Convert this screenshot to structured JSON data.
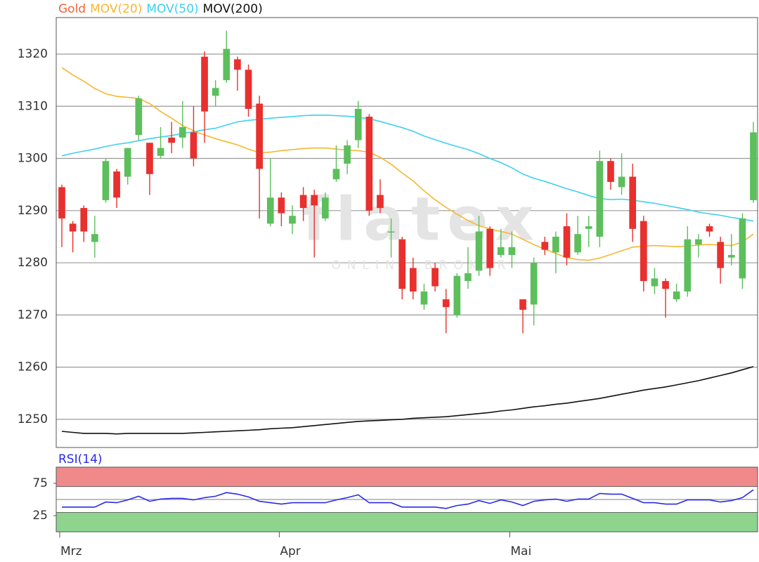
{
  "chart_data": [
    {
      "type": "candlestick",
      "name": "Gold",
      "color": "#f2643a",
      "up_color": "#5cbf5c",
      "down_color": "#e8302e",
      "watermark": "flatex",
      "watermark_subtitle": "ONLINE BROKER",
      "categories": [
        "Mrz",
        null,
        null,
        null,
        null,
        null,
        null,
        null,
        null,
        null,
        null,
        null,
        null,
        null,
        null,
        null,
        null,
        null,
        null,
        null,
        "Apr",
        null,
        null,
        null,
        null,
        null,
        null,
        null,
        null,
        null,
        null,
        null,
        null,
        null,
        null,
        null,
        null,
        null,
        null,
        null,
        null,
        "Mai",
        null,
        null,
        null,
        null,
        null,
        null,
        null,
        null,
        null,
        null,
        null,
        null,
        null,
        null,
        null,
        null,
        null,
        null,
        null,
        null,
        null,
        null
      ],
      "open": [
        1294.5,
        1287.5,
        1290.5,
        1284,
        1292,
        1297.5,
        1296.5,
        1304.5,
        1303,
        1300.5,
        1304,
        1304,
        1305,
        1319.5,
        1312,
        1315,
        1319,
        1317,
        1310.5,
        1287.5,
        1292.5,
        1287.5,
        1293,
        1293,
        1288.5,
        1296,
        1299,
        1303.5,
        1308,
        1293,
        1286,
        1284.5,
        1279,
        1272,
        1279,
        1273,
        1270,
        1276.5,
        1278.5,
        1286.5,
        1281.5,
        1281.5,
        1273,
        1272,
        1284,
        1282,
        1287,
        1282,
        1286.5,
        1285,
        1299.5,
        1294.5,
        1296.5,
        1288,
        1275.5,
        1276.5,
        1273,
        1274.5,
        1283.5,
        1287,
        1284,
        1281,
        1277,
        1292
      ],
      "high": [
        1295,
        1288,
        1291,
        1289,
        1300,
        1298,
        1302,
        1312,
        1303,
        1306,
        1307,
        1311,
        1310,
        1320.5,
        1315,
        1324.5,
        1319.5,
        1318,
        1312,
        1300,
        1293.5,
        1291,
        1294.5,
        1294,
        1293.5,
        1302.5,
        1303.5,
        1311,
        1308.5,
        1296,
        1288.5,
        1285,
        1281,
        1276,
        1280,
        1275,
        1278,
        1283,
        1289,
        1287,
        1286.5,
        1286,
        1273,
        1281,
        1285,
        1286,
        1289.5,
        1289,
        1289,
        1301.5,
        1300,
        1301,
        1299,
        1289,
        1279,
        1277,
        1276,
        1287,
        1285.5,
        1287.5,
        1285,
        1285.5,
        1289.5,
        1307
      ],
      "low": [
        1283,
        1282,
        1284,
        1281,
        1291.5,
        1290.5,
        1295,
        1303.5,
        1293,
        1300,
        1301,
        1302,
        1298.5,
        1303,
        1310,
        1314.5,
        1313,
        1308,
        1288.5,
        1287,
        1287,
        1285.5,
        1288,
        1281,
        1288,
        1295.5,
        1297,
        1302,
        1289,
        1289.5,
        1281,
        1273,
        1273,
        1271,
        1274.5,
        1266.5,
        1269.5,
        1275,
        1277.5,
        1277.5,
        1281,
        1279,
        1266.5,
        1268,
        1281.5,
        1278,
        1279.5,
        1281.5,
        1283,
        1283,
        1294,
        1293,
        1284,
        1274.5,
        1274,
        1269.5,
        1272.5,
        1273.5,
        1281,
        1285,
        1276,
        1279.5,
        1275,
        1291.5
      ],
      "close": [
        1288.5,
        1286,
        1286,
        1285.5,
        1299.5,
        1292.5,
        1302,
        1311.5,
        1297,
        1302,
        1303,
        1306,
        1300,
        1309,
        1313.5,
        1321,
        1317,
        1309.5,
        1298,
        1292.5,
        1289.5,
        1289,
        1290.5,
        1291,
        1292.5,
        1298,
        1302.5,
        1309.5,
        1290,
        1290.5,
        1286,
        1275,
        1274.5,
        1274.5,
        1275.5,
        1271.5,
        1277.5,
        1278,
        1286,
        1279,
        1283,
        1283,
        1271,
        1280,
        1282.5,
        1285,
        1281,
        1285.5,
        1287,
        1299.5,
        1295.5,
        1296.5,
        1286.5,
        1276.5,
        1277,
        1275,
        1274.5,
        1284.5,
        1284.5,
        1286,
        1279,
        1281.5,
        1288.5,
        1305
      ],
      "series": [
        {
          "name": "MOV(20)",
          "color": "#f7b731",
          "values": [
            1317.4,
            1316,
            1314.8,
            1313.4,
            1312.4,
            1311.9,
            1311.7,
            1311.5,
            1310.5,
            1309,
            1307.7,
            1306.3,
            1305.3,
            1304.5,
            1303.8,
            1303.2,
            1302.6,
            1301.8,
            1301.1,
            1301.2,
            1301.5,
            1301.7,
            1301.9,
            1302,
            1302,
            1301.8,
            1301.6,
            1301.5,
            1301.2,
            1300.2,
            1298.9,
            1297.2,
            1295.7,
            1293.8,
            1292.1,
            1290.6,
            1289.3,
            1288.1,
            1287.1,
            1286.5,
            1286,
            1285.5,
            1284.5,
            1283.5,
            1282.6,
            1281.8,
            1281,
            1280.6,
            1280.5,
            1280.9,
            1281.6,
            1282.3,
            1283,
            1283.2,
            1283.3,
            1283.2,
            1283.1,
            1283.2,
            1283.4,
            1283.5,
            1283.4,
            1283.3,
            1284,
            1285.5
          ]
        },
        {
          "name": "MOV(50)",
          "color": "#3fd0f0",
          "values": [
            1300.5,
            1301,
            1301.4,
            1301.8,
            1302.3,
            1302.7,
            1303,
            1303.4,
            1303.8,
            1304.1,
            1304.4,
            1304.8,
            1305.1,
            1305.5,
            1305.8,
            1306.4,
            1307,
            1307.3,
            1307.5,
            1307.7,
            1307.9,
            1308,
            1308.2,
            1308.3,
            1308.3,
            1308.2,
            1308.1,
            1307.9,
            1307.6,
            1307.1,
            1306.5,
            1305.9,
            1305.2,
            1304.3,
            1303.6,
            1302.9,
            1302.3,
            1301.7,
            1300.9,
            1300,
            1299.2,
            1298.2,
            1297,
            1296.2,
            1295.6,
            1294.9,
            1294.2,
            1293.6,
            1292.9,
            1292.3,
            1292.1,
            1292.2,
            1292,
            1291.7,
            1291.4,
            1291,
            1290.6,
            1290.2,
            1289.7,
            1289.4,
            1289.1,
            1288.7,
            1288.4,
            1288
          ]
        },
        {
          "name": "MOV(200)",
          "color": "#111111",
          "values": [
            1247.7,
            1247.5,
            1247.3,
            1247.3,
            1247.3,
            1247.2,
            1247.3,
            1247.3,
            1247.3,
            1247.3,
            1247.3,
            1247.3,
            1247.4,
            1247.5,
            1247.6,
            1247.7,
            1247.8,
            1247.9,
            1248,
            1248.2,
            1248.3,
            1248.4,
            1248.6,
            1248.8,
            1249,
            1249.2,
            1249.4,
            1249.6,
            1249.7,
            1249.8,
            1249.9,
            1250,
            1250.2,
            1250.3,
            1250.4,
            1250.5,
            1250.7,
            1250.9,
            1251.1,
            1251.3,
            1251.6,
            1251.8,
            1252.1,
            1252.4,
            1252.6,
            1252.9,
            1253.1,
            1253.4,
            1253.7,
            1254,
            1254.4,
            1254.8,
            1255.2,
            1255.6,
            1255.9,
            1256.2,
            1256.6,
            1257,
            1257.4,
            1257.9,
            1258.4,
            1258.9,
            1259.5,
            1260.1
          ]
        }
      ],
      "ylim": [
        1244.6,
        1327
      ],
      "yticks": [
        1250,
        1260,
        1270,
        1280,
        1290,
        1300,
        1310,
        1320
      ],
      "grid": true
    },
    {
      "type": "line",
      "series": [
        {
          "name": "RSI(14)",
          "color": "#2a2ae8",
          "values": [
            38.3,
            38.3,
            38.3,
            38.3,
            46.1,
            45,
            49.4,
            55,
            47.2,
            50.6,
            51.7,
            51.7,
            49.4,
            52.8,
            55,
            60.6,
            58.3,
            53.9,
            47.2,
            45,
            42.8,
            45,
            45,
            45,
            45,
            49.4,
            52.8,
            57.2,
            45,
            45,
            45,
            38.3,
            38.3,
            38.3,
            38.3,
            36.1,
            40.6,
            42.8,
            48.3,
            43.9,
            49.4,
            46.1,
            40.6,
            47.2,
            49.4,
            50.6,
            47.2,
            50.6,
            50.6,
            59.4,
            58.3,
            58.3,
            51.7,
            45,
            45,
            42.8,
            42.8,
            49.4,
            49.4,
            49.4,
            46.1,
            48.3,
            52.8,
            65
          ]
        }
      ],
      "bands": [
        {
          "range": [
            70,
            100
          ],
          "color": "#f08a8a"
        },
        {
          "range": [
            0,
            30
          ],
          "color": "#8ed48e"
        }
      ],
      "midline": 50,
      "ylim": [
        0,
        100
      ],
      "yticks": [
        25,
        75
      ],
      "grid": false
    }
  ]
}
